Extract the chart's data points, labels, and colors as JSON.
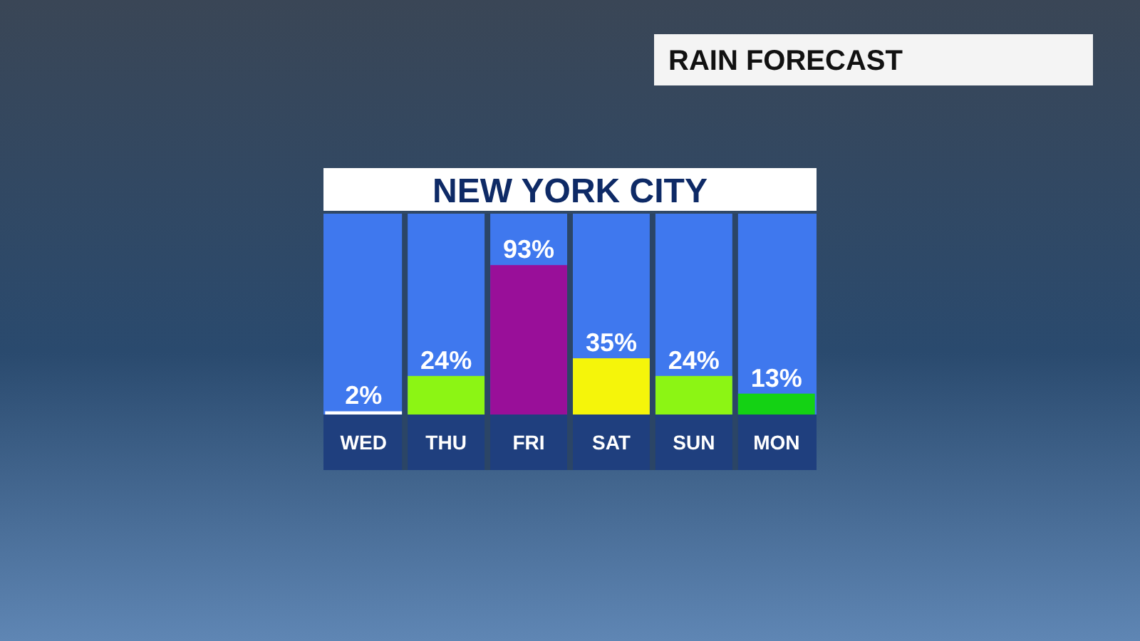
{
  "chart_data": {
    "type": "bar",
    "title": "RAIN FORECAST",
    "subtitle": "NEW YORK CITY",
    "categories": [
      "WED",
      "THU",
      "FRI",
      "SAT",
      "SUN",
      "MON"
    ],
    "values": [
      2,
      24,
      93,
      35,
      24,
      13
    ],
    "colors": [
      "#ffffff",
      "#8cf514",
      "#990f99",
      "#f5f50a",
      "#8cf514",
      "#14d214"
    ],
    "value_labels": [
      "2%",
      "24%",
      "93%",
      "35%",
      "24%",
      "13%"
    ],
    "ylim": [
      0,
      125
    ],
    "tick_labels": "x"
  }
}
